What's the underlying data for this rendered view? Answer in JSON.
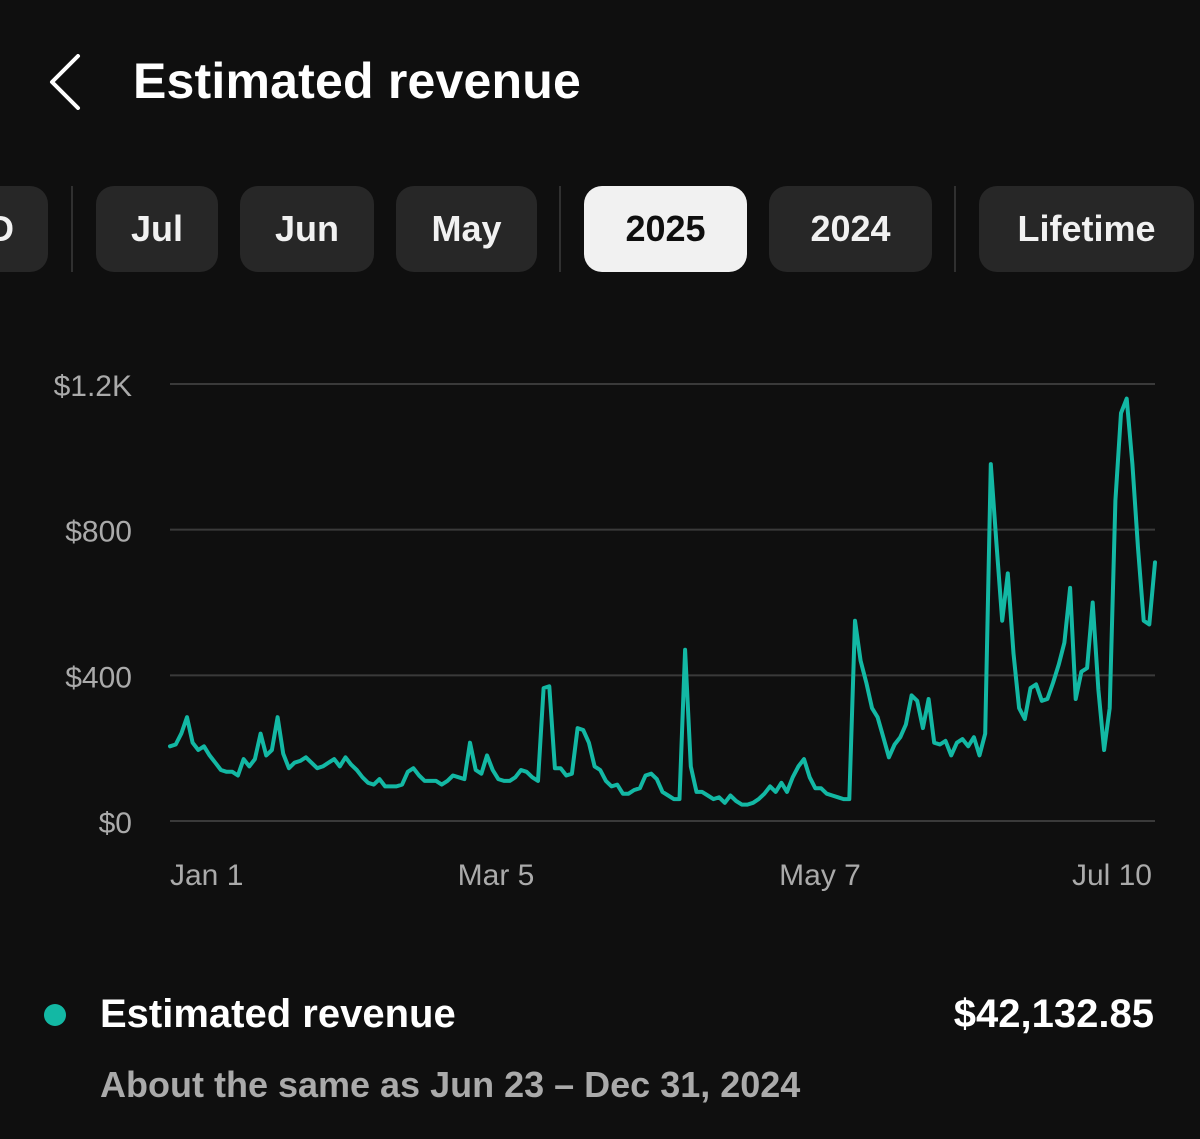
{
  "header": {
    "title": "Estimated revenue"
  },
  "chips": [
    {
      "label": "D",
      "selected": false
    },
    {
      "label": "Jul",
      "selected": false
    },
    {
      "label": "Jun",
      "selected": false
    },
    {
      "label": "May",
      "selected": false
    },
    {
      "label": "2025",
      "selected": true
    },
    {
      "label": "2024",
      "selected": false
    },
    {
      "label": "Lifetime",
      "selected": false
    }
  ],
  "colors": {
    "background": "#0f0f0f",
    "accent": "#13b8a4",
    "chip": "#272727",
    "chip_selected": "#f1f1f1",
    "secondary_text": "#aaaaaa",
    "gridline": "#3a3a3a"
  },
  "chart_data": {
    "type": "line",
    "title": "",
    "xlabel": "",
    "ylabel": "",
    "ylim": [
      0,
      1200
    ],
    "yticks": [
      0,
      400,
      800,
      1200
    ],
    "ytick_labels": [
      "$0",
      "$400",
      "$800",
      "$1.2K"
    ],
    "xtick_labels": [
      "Jan 1",
      "Mar 5",
      "May 7",
      "Jul 10"
    ],
    "grid": true,
    "series": [
      {
        "name": "Estimated revenue",
        "values": [
          205,
          210,
          240,
          285,
          215,
          195,
          205,
          180,
          160,
          140,
          135,
          135,
          125,
          170,
          150,
          170,
          240,
          180,
          195,
          285,
          185,
          145,
          160,
          165,
          175,
          160,
          145,
          150,
          160,
          170,
          150,
          175,
          155,
          140,
          120,
          105,
          100,
          115,
          95,
          95,
          95,
          100,
          135,
          145,
          125,
          110,
          110,
          110,
          100,
          110,
          125,
          120,
          115,
          215,
          140,
          130,
          180,
          140,
          115,
          110,
          110,
          120,
          140,
          135,
          120,
          110,
          365,
          370,
          145,
          145,
          125,
          130,
          255,
          250,
          215,
          150,
          140,
          110,
          95,
          100,
          75,
          75,
          85,
          90,
          125,
          130,
          115,
          80,
          70,
          60,
          60,
          470,
          150,
          80,
          80,
          70,
          60,
          65,
          50,
          70,
          55,
          45,
          45,
          50,
          60,
          75,
          95,
          80,
          105,
          80,
          120,
          150,
          170,
          120,
          90,
          90,
          75,
          70,
          65,
          60,
          60,
          550,
          440,
          380,
          310,
          285,
          230,
          175,
          210,
          230,
          265,
          345,
          330,
          255,
          335,
          215,
          210,
          220,
          180,
          215,
          225,
          205,
          230,
          180,
          240,
          980,
          760,
          550,
          680,
          460,
          310,
          280,
          365,
          375,
          330,
          335,
          380,
          430,
          490,
          640,
          335,
          410,
          420,
          600,
          360,
          195,
          310,
          880,
          1120,
          1160,
          980,
          750,
          550,
          540,
          710
        ]
      }
    ]
  },
  "legend": {
    "label": "Estimated revenue",
    "value": "$42,132.85",
    "comparison": "About the same as Jun 23 – Dec 31, 2024"
  }
}
